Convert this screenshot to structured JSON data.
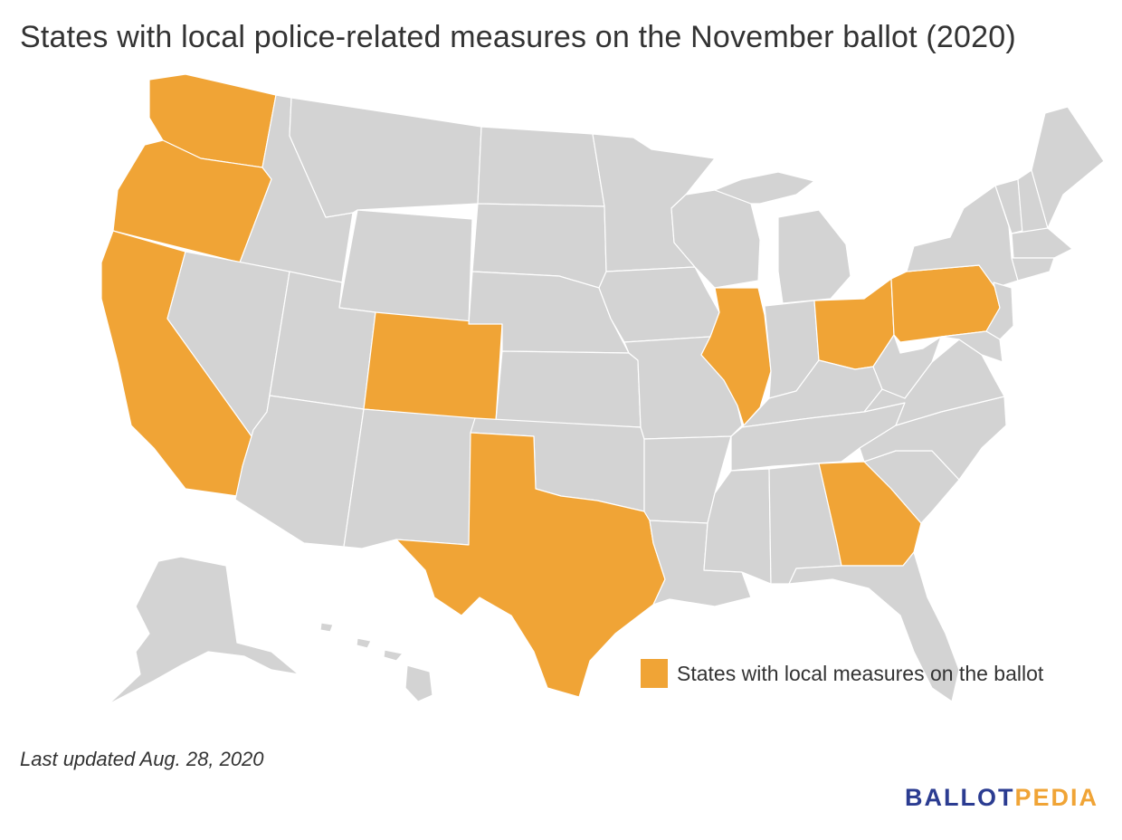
{
  "title": "States with local police-related measures on the November ballot (2020)",
  "colors": {
    "highlight": "#f0a436",
    "other": "#d3d3d3",
    "text": "#333333",
    "logo_ballot": "#2b3c91",
    "logo_pedia": "#f0a436"
  },
  "legend": {
    "label": "States with local measures on the ballot"
  },
  "highlighted_states": [
    "WA",
    "OR",
    "CA",
    "CO",
    "TX",
    "IL",
    "OH",
    "PA",
    "GA"
  ],
  "footer": {
    "updated": "Last updated Aug. 28, 2020"
  },
  "logo": {
    "part1": "BALLOT",
    "part2": "PEDIA"
  }
}
